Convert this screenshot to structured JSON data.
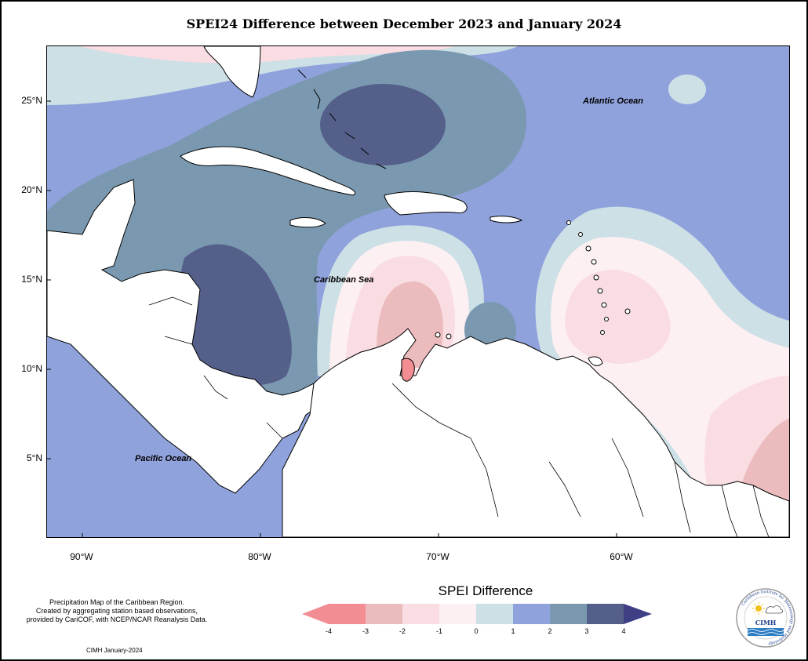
{
  "title": "SPEI24 Difference between December 2023 and January 2024",
  "map": {
    "lat_ticks": [
      "25°N",
      "20°N",
      "15°N",
      "10°N",
      "5°N"
    ],
    "lon_ticks": [
      "90°W",
      "80°W",
      "70°W",
      "60°W"
    ],
    "labels": {
      "atlantic": "Atlantic Ocean",
      "caribbean": "Caribbean Sea",
      "pacific": "Pacific Ocean"
    },
    "colors": {
      "diff_4_to_3_neg": "#f28e93",
      "diff_3_to_2_neg": "#ebbbbd",
      "diff_2_to_1_neg": "#f9dde2",
      "diff_1_to_0_neg": "#fdf0f2",
      "diff_0_to_1": "#cde0e6",
      "diff_1_to_2": "#8fa2dc",
      "diff_2_to_3": "#7a99b0",
      "diff_3_to_4": "#545f8a",
      "land": "#ffffff"
    }
  },
  "legend": {
    "title": "SPEI Difference",
    "ticks": [
      "-4",
      "-3",
      "-2",
      "-1",
      "0",
      "1",
      "2",
      "3",
      "4"
    ]
  },
  "notes": {
    "line1": "Precipitation Map of the Caribbean Region.",
    "line2": "Created by aggregating station based observations,",
    "line3": "provided by CariCOF, with NCEP/NCAR Reanalysis Data.",
    "credit": "CIMH January-2024"
  },
  "logo": {
    "text": "CIMH",
    "ring_text": "Caribbean Institute for Meteorology and Hydrology"
  }
}
